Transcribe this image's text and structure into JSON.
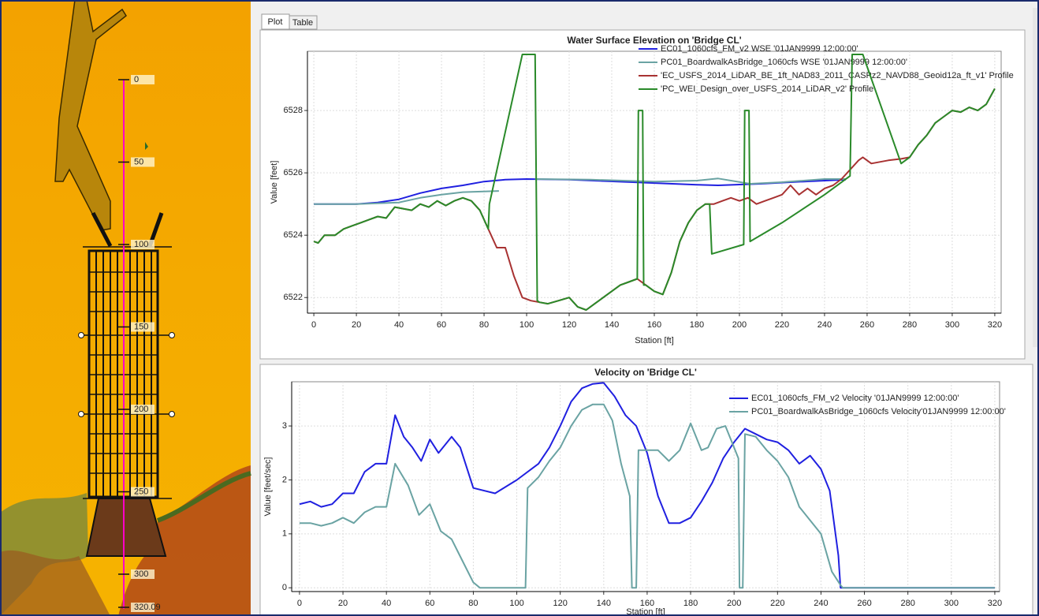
{
  "tabs": [
    "Plot",
    "Table"
  ],
  "map": {
    "stations": [
      0,
      50,
      100,
      150,
      200,
      250,
      300,
      320.09
    ]
  },
  "chart_data": [
    {
      "type": "line",
      "title": "Water Surface Elevation on 'Bridge CL'",
      "x_label": "Station [ft]",
      "y_label": "Value [feet]",
      "xlim": [
        -3,
        323
      ],
      "ylim": [
        6521.5,
        6529.9
      ],
      "xticks": [
        0,
        20,
        40,
        60,
        80,
        100,
        120,
        140,
        160,
        180,
        200,
        220,
        240,
        260,
        280,
        300,
        320
      ],
      "yticks": [
        6522,
        6524,
        6526,
        6528
      ],
      "grid": true,
      "legend": "upper right",
      "series": [
        {
          "name": "EC01_1060cfs_FM_v2 WSE '01JAN9999 12:00:00'",
          "color": "#2020e0",
          "x": [
            0,
            20,
            30,
            40,
            50,
            60,
            70,
            80,
            90,
            100,
            120,
            150,
            180,
            190,
            210,
            230,
            250
          ],
          "values": [
            6525.0,
            6525.0,
            6525.05,
            6525.15,
            6525.35,
            6525.5,
            6525.6,
            6525.72,
            6525.78,
            6525.8,
            6525.78,
            6525.7,
            6525.62,
            6525.6,
            6525.65,
            6525.72,
            6525.78
          ]
        },
        {
          "name": "PC01_BoardwalkAsBridge_1060cfs WSE '01JAN9999 12:00:00'",
          "color": "#6aa3a3",
          "x": [
            0,
            20,
            40,
            50,
            60,
            70,
            87,
            95,
            104,
            130,
            160,
            180,
            190,
            205,
            220,
            240,
            250
          ],
          "values": [
            6525.0,
            6525.0,
            6525.05,
            6525.2,
            6525.3,
            6525.38,
            6525.42,
            null,
            6525.8,
            6525.78,
            6525.72,
            6525.75,
            6525.82,
            6525.65,
            6525.7,
            6525.8,
            6525.8
          ]
        },
        {
          "name": "'EC_USFS_2014_LiDAR_BE_1ft_NAD83_2011_CASPz2_NAVD88_Geoid12a_ft_v1' Profile",
          "color": "#a83232",
          "x": [
            0,
            2,
            5,
            10,
            14,
            18,
            22,
            26,
            30,
            34,
            38,
            42,
            46,
            50,
            54,
            58,
            62,
            66,
            70,
            74,
            78,
            82,
            86,
            90,
            94,
            98,
            102,
            106,
            110,
            115,
            120,
            124,
            128,
            132,
            136,
            140,
            144,
            148,
            152,
            156,
            160,
            164,
            168,
            172,
            176,
            180,
            184,
            188,
            192,
            196,
            200,
            204,
            208,
            212,
            216,
            220,
            224,
            228,
            232,
            236,
            240,
            244,
            248,
            252,
            256,
            258,
            262,
            270,
            276,
            280,
            284,
            288,
            292,
            296,
            300,
            304,
            308,
            312,
            316,
            320
          ],
          "values": [
            6523.8,
            6523.75,
            6524.0,
            6524.0,
            6524.2,
            6524.3,
            6524.4,
            6524.5,
            6524.6,
            6524.55,
            6524.9,
            6524.85,
            6524.8,
            6525.0,
            6524.9,
            6525.1,
            6524.95,
            6525.1,
            6525.2,
            6525.1,
            6524.8,
            6524.2,
            6523.6,
            6523.6,
            6522.7,
            6522.0,
            6521.9,
            6521.85,
            6521.8,
            6521.9,
            6522.0,
            6521.7,
            6521.6,
            6521.8,
            6522.0,
            6522.2,
            6522.4,
            6522.5,
            6522.6,
            6522.4,
            6522.2,
            6522.1,
            6522.8,
            6523.8,
            6524.4,
            6524.8,
            6525.0,
            6525.0,
            6525.1,
            6525.2,
            6525.1,
            6525.2,
            6525.0,
            6525.1,
            6525.2,
            6525.3,
            6525.6,
            6525.3,
            6525.5,
            6525.3,
            6525.5,
            6525.6,
            6525.8,
            6526.1,
            6526.4,
            6526.5,
            6526.3,
            6526.4,
            6526.45,
            6526.5,
            6526.9,
            6527.2,
            6527.6,
            6527.8,
            6528.0,
            6527.95,
            6528.1,
            6528.0,
            6528.2,
            6528.7
          ]
        },
        {
          "name": "'PC_WEI_Design_over_USFS_2014_LiDAR_v2' Profile",
          "color": "#2a8a2a",
          "x": [
            0,
            2,
            5,
            10,
            14,
            18,
            22,
            26,
            30,
            34,
            38,
            42,
            46,
            50,
            54,
            58,
            62,
            66,
            70,
            74,
            78,
            82,
            82.5,
            98,
            104,
            105,
            106,
            110,
            115,
            120,
            124,
            128,
            132,
            136,
            140,
            144,
            148,
            152,
            152.5,
            154.5,
            155,
            156,
            160,
            164,
            168,
            172,
            176,
            180,
            184,
            186,
            187,
            202,
            202.5,
            204.5,
            205,
            220,
            240,
            252,
            253,
            258,
            276,
            280,
            284,
            288,
            292,
            296,
            300,
            304,
            308,
            312,
            316,
            320
          ],
          "values": [
            6523.8,
            6523.75,
            6524.0,
            6524.0,
            6524.2,
            6524.3,
            6524.4,
            6524.5,
            6524.6,
            6524.55,
            6524.9,
            6524.85,
            6524.8,
            6525.0,
            6524.9,
            6525.1,
            6524.95,
            6525.1,
            6525.2,
            6525.1,
            6524.8,
            6524.2,
            6525.0,
            6529.8,
            6529.8,
            6521.9,
            6521.85,
            6521.8,
            6521.9,
            6522.0,
            6521.7,
            6521.6,
            6521.8,
            6522.0,
            6522.2,
            6522.4,
            6522.5,
            6522.6,
            6528.0,
            6528.0,
            6522.4,
            6522.4,
            6522.2,
            6522.1,
            6522.8,
            6523.8,
            6524.4,
            6524.8,
            6525.0,
            6525.0,
            6523.4,
            6523.7,
            6528.0,
            6528.0,
            6523.8,
            6524.4,
            6525.3,
            6525.9,
            6529.8,
            6529.8,
            6526.3,
            6526.5,
            6526.9,
            6527.2,
            6527.6,
            6527.8,
            6528.0,
            6527.95,
            6528.1,
            6528.0,
            6528.2,
            6528.7
          ]
        }
      ]
    },
    {
      "type": "line",
      "title": "Velocity on 'Bridge CL'",
      "x_label": "Station [ft]",
      "y_label": "Value [feet/sec]",
      "xlim": [
        -3.6,
        322.2
      ],
      "ylim": [
        -0.07,
        3.82
      ],
      "xticks": [
        0,
        20,
        40,
        60,
        80,
        100,
        120,
        140,
        160,
        180,
        200,
        220,
        240,
        260,
        280,
        300,
        320
      ],
      "yticks": [
        0,
        1,
        2,
        3
      ],
      "grid": true,
      "legend": "upper right",
      "series": [
        {
          "name": "EC01_1060cfs_FM_v2 Velocity '01JAN9999 12:00:00'",
          "color": "#2020e0",
          "x": [
            0,
            5,
            10,
            15,
            20,
            25,
            30,
            35,
            40,
            44,
            48,
            52,
            56,
            60,
            64,
            70,
            74,
            80,
            90,
            100,
            110,
            115,
            120,
            125,
            130,
            135,
            140,
            145,
            150,
            155,
            160,
            165,
            170,
            175,
            180,
            185,
            190,
            195,
            200,
            205,
            210,
            215,
            220,
            225,
            230,
            235,
            240,
            244,
            248,
            249,
            260,
            320
          ],
          "values": [
            1.55,
            1.6,
            1.5,
            1.55,
            1.75,
            1.75,
            2.15,
            2.3,
            2.3,
            3.2,
            2.8,
            2.6,
            2.35,
            2.75,
            2.5,
            2.8,
            2.6,
            1.85,
            1.75,
            2.0,
            2.3,
            2.6,
            3.0,
            3.45,
            3.7,
            3.78,
            3.8,
            3.55,
            3.2,
            3.0,
            2.5,
            1.7,
            1.2,
            1.2,
            1.3,
            1.6,
            1.95,
            2.4,
            2.7,
            2.95,
            2.85,
            2.75,
            2.7,
            2.55,
            2.3,
            2.45,
            2.2,
            1.8,
            0.6,
            0,
            0,
            0
          ]
        },
        {
          "name": "PC01_BoardwalkAsBridge_1060cfs Velocity'01JAN9999 12:00:00'",
          "color": "#6aa3a3",
          "x": [
            0,
            5,
            10,
            15,
            20,
            25,
            30,
            35,
            40,
            44,
            50,
            55,
            60,
            65,
            70,
            75,
            80,
            83,
            104,
            105,
            110,
            115,
            120,
            125,
            130,
            135,
            140,
            144,
            148,
            152,
            153,
            155,
            156,
            160,
            165,
            170,
            175,
            180,
            185,
            188,
            192,
            196,
            200,
            202,
            202.5,
            204,
            205,
            210,
            215,
            220,
            225,
            230,
            235,
            240,
            245,
            249,
            250,
            320
          ],
          "values": [
            1.2,
            1.2,
            1.15,
            1.2,
            1.3,
            1.2,
            1.4,
            1.5,
            1.5,
            2.3,
            1.9,
            1.35,
            1.55,
            1.05,
            0.9,
            0.5,
            0.1,
            0,
            0,
            1.85,
            2.05,
            2.35,
            2.6,
            3.0,
            3.3,
            3.4,
            3.4,
            3.1,
            2.3,
            1.7,
            0,
            0,
            2.55,
            2.55,
            2.55,
            2.35,
            2.55,
            3.05,
            2.55,
            2.6,
            2.95,
            3.0,
            2.6,
            2.4,
            0,
            0,
            2.85,
            2.8,
            2.55,
            2.35,
            2.05,
            1.5,
            1.25,
            1.0,
            0.3,
            0.05,
            0,
            0
          ]
        }
      ]
    }
  ]
}
